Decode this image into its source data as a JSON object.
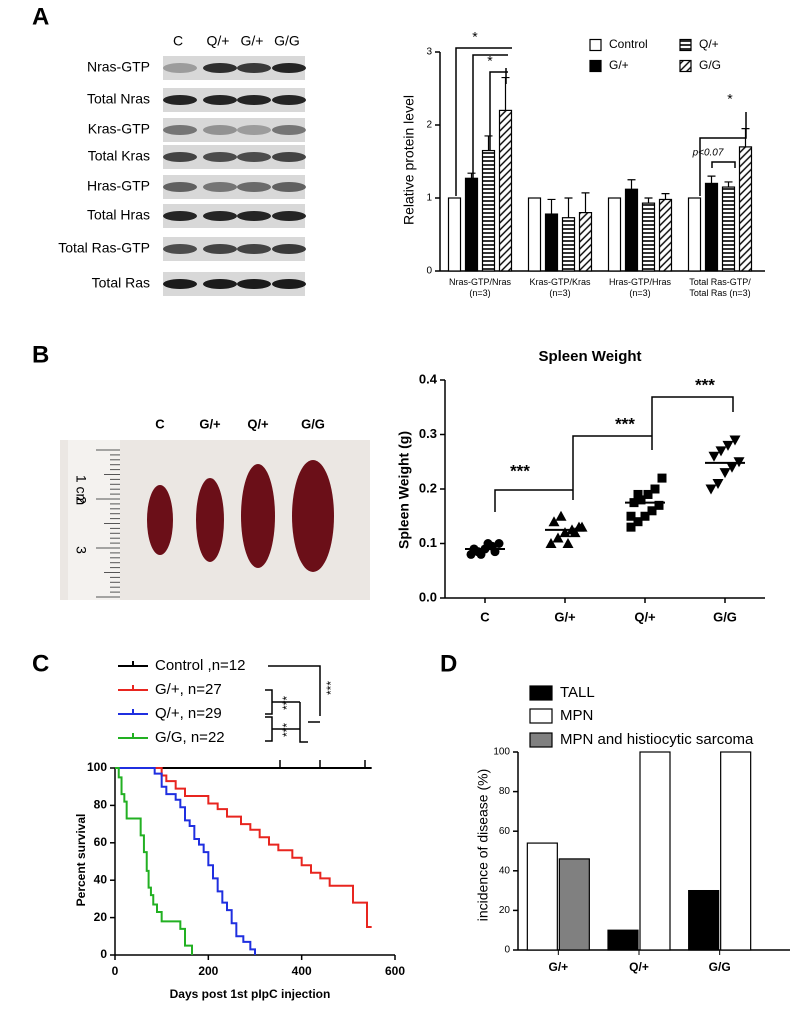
{
  "panels": [
    "A",
    "B",
    "C",
    "D"
  ],
  "blot": {
    "lanes": [
      "C",
      "Q/+",
      "G/+",
      "G/G"
    ],
    "rows": [
      "Nras-GTP",
      "Total Nras",
      "Kras-GTP",
      "Total Kras",
      "Hras-GTP",
      "Total Hras",
      "Total Ras-GTP",
      "Total Ras"
    ]
  },
  "photo": {
    "groups": [
      "C",
      "G/+",
      "Q/+",
      "G/G"
    ],
    "ruler": [
      "1 cm",
      "2",
      "3"
    ]
  },
  "chart_data": [
    {
      "type": "bar",
      "ylabel": "Relative  protein level",
      "categories": [
        [
          "Nras-GTP/Nras",
          "(n=3)"
        ],
        [
          "Kras-GTP/Kras",
          "(n=3)"
        ],
        [
          "Hras-GTP/Hras",
          "(n=3)"
        ],
        [
          "Total Ras-GTP/",
          "Total Ras (n=3)"
        ]
      ],
      "series": [
        {
          "name": "Control",
          "color": "#ffffff",
          "pattern": "solid",
          "values": [
            1,
            1,
            1,
            1
          ]
        },
        {
          "name": "G/+",
          "color": "#000000",
          "pattern": "solid",
          "values": [
            1.27,
            0.78,
            1.12,
            1.2
          ],
          "errors": [
            0.07,
            0.2,
            0.13,
            0.1
          ]
        },
        {
          "name": "Q/+",
          "color": "#000000",
          "pattern": "horizontal-lines",
          "values": [
            1.65,
            0.73,
            0.93,
            1.15
          ],
          "errors": [
            0.2,
            0.27,
            0.07,
            0.07
          ]
        },
        {
          "name": "G/G",
          "color": "#000000",
          "pattern": "diagonal-lines",
          "values": [
            2.2,
            0.8,
            0.98,
            1.7
          ],
          "errors": [
            0.45,
            0.27,
            0.08,
            0.25
          ]
        }
      ],
      "ylim": [
        0,
        3
      ],
      "yticks": [
        0,
        1,
        2,
        3
      ],
      "annotations": [
        "*",
        "*",
        "*",
        "p<0.07"
      ]
    },
    {
      "type": "scatter",
      "title": "Spleen  Weight",
      "ylabel": "Spleen Weight (g)",
      "categories": [
        "C",
        "G/+",
        "Q/+",
        "G/G"
      ],
      "color": "#000000",
      "markers": [
        "circle",
        "triangle",
        "square",
        "triangle-down"
      ],
      "values": [
        [
          0.08,
          0.085,
          0.09,
          0.095,
          0.1,
          0.09,
          0.08,
          0.1,
          0.085
        ],
        [
          0.1,
          0.11,
          0.12,
          0.125,
          0.13,
          0.14,
          0.15,
          0.1,
          0.12,
          0.13
        ],
        [
          0.13,
          0.14,
          0.15,
          0.16,
          0.17,
          0.175,
          0.18,
          0.19,
          0.2,
          0.22,
          0.15,
          0.19
        ],
        [
          0.2,
          0.21,
          0.23,
          0.24,
          0.25,
          0.26,
          0.27,
          0.28,
          0.29
        ]
      ],
      "means": [
        0.09,
        0.125,
        0.175,
        0.248
      ],
      "ylim": [
        0,
        0.4
      ],
      "yticks": [
        {
          "value": 0,
          "label": "0.0"
        },
        0.1,
        0.2,
        0.3,
        0.4
      ],
      "annotations": [
        "***",
        "***",
        "***"
      ]
    },
    {
      "type": "line",
      "xlabel": "Days post 1st pIpC injection",
      "ylabel": "Percent survival",
      "series": [
        {
          "name": "Control ,n=12",
          "color": "#000000",
          "x": [
            0,
            550
          ],
          "values": [
            100,
            100
          ]
        },
        {
          "name": "G/+, n=27",
          "color": "#e8251f",
          "x": [
            0,
            100,
            110,
            130,
            150,
            200,
            220,
            240,
            270,
            290,
            310,
            330,
            350,
            380,
            400,
            420,
            440,
            460,
            510,
            540,
            550
          ],
          "values": [
            100,
            96,
            93,
            89,
            85,
            81,
            78,
            74,
            70,
            67,
            63,
            59,
            56,
            52,
            48,
            44,
            41,
            37,
            28,
            15,
            15
          ]
        },
        {
          "name": "Q/+, n=29",
          "color": "#1f2fe0",
          "x": [
            0,
            85,
            100,
            110,
            130,
            140,
            150,
            160,
            170,
            180,
            190,
            200,
            210,
            220,
            230,
            240,
            250,
            260,
            275,
            290,
            300
          ],
          "values": [
            100,
            97,
            90,
            86,
            83,
            79,
            72,
            69,
            62,
            59,
            55,
            48,
            41,
            34,
            28,
            24,
            17,
            10,
            7,
            3,
            0
          ]
        },
        {
          "name": "G/G, n=22",
          "color": "#22b022",
          "x": [
            0,
            8,
            14,
            20,
            25,
            55,
            62,
            68,
            72,
            77,
            82,
            90,
            100,
            110,
            140,
            150,
            165
          ],
          "values": [
            100,
            95,
            86,
            82,
            73,
            64,
            55,
            45,
            36,
            32,
            27,
            23,
            18,
            18,
            14,
            5,
            0
          ]
        }
      ],
      "xlim": [
        0,
        600
      ],
      "xticks": [
        0,
        200,
        400,
        600
      ],
      "ylim": [
        0,
        100
      ],
      "yticks": [
        0,
        20,
        40,
        60,
        80,
        100
      ],
      "annotations": [
        "***",
        "***",
        "***"
      ]
    },
    {
      "type": "bar",
      "ylabel": "incidence of disease (%)",
      "categories": [
        "G/+",
        "Q/+",
        "G/G"
      ],
      "series": [
        {
          "name": "TALL",
          "color": "#000000",
          "values": [
            null,
            10,
            30
          ]
        },
        {
          "name": "MPN",
          "color": "#ffffff",
          "values": [
            54,
            100,
            100
          ]
        },
        {
          "name": "MPN and histiocytic sarcoma",
          "color": "#808080",
          "values": [
            46,
            null,
            null
          ]
        }
      ],
      "ylim": [
        0,
        100
      ],
      "yticks": [
        0,
        20,
        40,
        60,
        80,
        100
      ]
    }
  ]
}
